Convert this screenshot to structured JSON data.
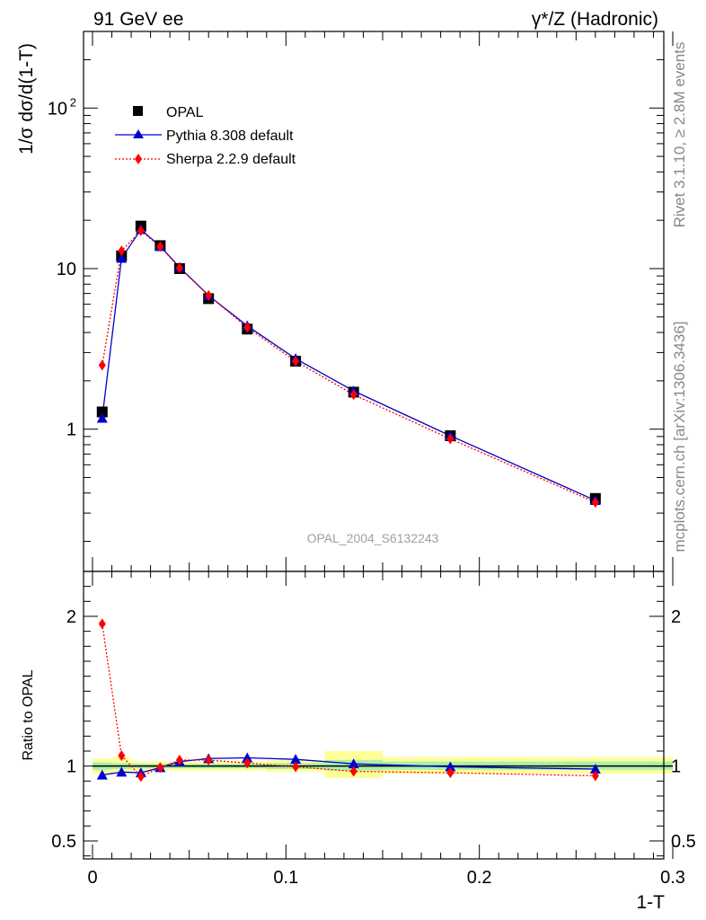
{
  "header": {
    "left": "91 GeV ee",
    "right": "γ*/Z (Hadronic)"
  },
  "side_labels": {
    "rivet": "Rivet 3.1.10, ≥ 2.8M events",
    "mcplots": "mcplots.cern.ch [arXiv:1306.3436]"
  },
  "watermark": "OPAL_2004_S6132243",
  "legend": {
    "data": "OPAL",
    "pythia": "Pythia 8.308 default",
    "sherpa": "Sherpa 2.2.9 default"
  },
  "colors": {
    "data": "#000000",
    "pythia": "#0000cc",
    "sherpa": "#ff0000",
    "band_inner": "#aaf0aa",
    "band_outer": "#ffff99"
  },
  "chart_data": [
    {
      "type": "line",
      "panel": "main",
      "xlabel": "1-T",
      "ylabel": "1/σ dσ/d(1-T)",
      "log_y": true,
      "xlim": [
        0,
        0.3
      ],
      "ylim": [
        0.13,
        300
      ],
      "y_tick_labels": [
        {
          "value": 1,
          "label": "1"
        },
        {
          "value": 10,
          "label": "10"
        },
        {
          "value": 100,
          "label": "10",
          "sup": "2"
        }
      ],
      "x": [
        0.005,
        0.015,
        0.025,
        0.035,
        0.045,
        0.06,
        0.08,
        0.105,
        0.135,
        0.185,
        0.26
      ],
      "series": [
        {
          "name": "OPAL",
          "marker": "square",
          "values": [
            1.28,
            12.0,
            18.4,
            13.9,
            10.0,
            6.5,
            4.2,
            2.65,
            1.7,
            0.91,
            0.37
          ]
        },
        {
          "name": "Pythia 8.308 default",
          "marker": "triangle",
          "values": [
            1.17,
            11.6,
            17.5,
            13.8,
            10.2,
            6.8,
            4.4,
            2.75,
            1.73,
            0.91,
            0.36
          ]
        },
        {
          "name": "Sherpa 2.2.9 default",
          "marker": "diamond",
          "values": [
            2.5,
            12.9,
            17.2,
            13.7,
            10.1,
            6.8,
            4.3,
            2.65,
            1.64,
            0.87,
            0.35
          ]
        }
      ]
    },
    {
      "type": "line",
      "panel": "ratio",
      "xlabel": "1-T",
      "ylabel": "Ratio to OPAL",
      "xlim": [
        0,
        0.3
      ],
      "ylim": [
        0.38,
        2.3
      ],
      "x_ticks": [
        0,
        0.1,
        0.2,
        0.3
      ],
      "x_tick_labels": [
        "0",
        "0.1",
        "0.2",
        "0.3"
      ],
      "y_ticks": [
        0.5,
        1,
        2
      ],
      "y_tick_labels": [
        "0.5",
        "1",
        "2"
      ],
      "x": [
        0.005,
        0.015,
        0.025,
        0.035,
        0.045,
        0.06,
        0.08,
        0.105,
        0.135,
        0.185,
        0.26
      ],
      "series": [
        {
          "name": "Pythia 8.308 default",
          "marker": "triangle",
          "values": [
            0.94,
            0.96,
            0.955,
            0.99,
            1.03,
            1.05,
            1.055,
            1.045,
            1.015,
            0.995,
            0.98
          ]
        },
        {
          "name": "Sherpa 2.2.9 default",
          "marker": "diamond",
          "values": [
            1.95,
            1.07,
            0.93,
            0.99,
            1.04,
            1.04,
            1.02,
            0.995,
            0.965,
            0.955,
            0.935
          ]
        }
      ],
      "bands": [
        {
          "x0": 0.0,
          "x1": 0.01,
          "inner": [
            0.975,
            1.025
          ],
          "outer": [
            0.95,
            1.05
          ]
        },
        {
          "x0": 0.01,
          "x1": 0.02,
          "inner": [
            0.98,
            1.02
          ],
          "outer": [
            0.96,
            1.06
          ]
        },
        {
          "x0": 0.02,
          "x1": 0.03,
          "inner": [
            0.985,
            1.015
          ],
          "outer": [
            0.965,
            1.03
          ]
        },
        {
          "x0": 0.03,
          "x1": 0.04,
          "inner": [
            0.985,
            1.015
          ],
          "outer": [
            0.97,
            1.03
          ]
        },
        {
          "x0": 0.04,
          "x1": 0.05,
          "inner": [
            0.985,
            1.015
          ],
          "outer": [
            0.97,
            1.03
          ]
        },
        {
          "x0": 0.05,
          "x1": 0.07,
          "inner": [
            0.985,
            1.015
          ],
          "outer": [
            0.97,
            1.03
          ]
        },
        {
          "x0": 0.07,
          "x1": 0.09,
          "inner": [
            0.985,
            1.015
          ],
          "outer": [
            0.97,
            1.03
          ]
        },
        {
          "x0": 0.09,
          "x1": 0.12,
          "inner": [
            0.98,
            1.02
          ],
          "outer": [
            0.96,
            1.04
          ]
        },
        {
          "x0": 0.12,
          "x1": 0.15,
          "inner": [
            0.97,
            1.04
          ],
          "outer": [
            0.92,
            1.1
          ]
        },
        {
          "x0": 0.15,
          "x1": 0.22,
          "inner": [
            0.975,
            1.03
          ],
          "outer": [
            0.95,
            1.06
          ]
        },
        {
          "x0": 0.22,
          "x1": 0.3,
          "inner": [
            0.975,
            1.03
          ],
          "outer": [
            0.95,
            1.06
          ]
        }
      ]
    }
  ]
}
